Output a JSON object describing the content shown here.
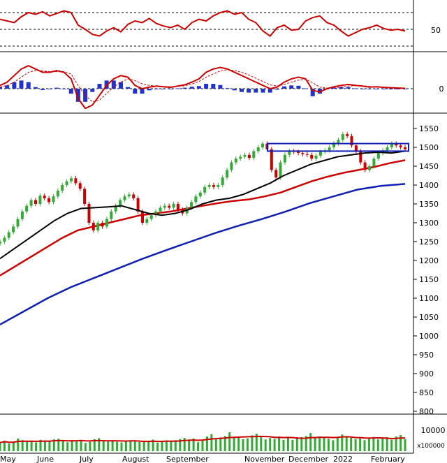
{
  "chart_data": [
    {
      "panel": "rsi",
      "type": "line",
      "y_ticks": [
        {
          "value": 50,
          "label": "50"
        }
      ],
      "ylim": [
        0,
        100
      ],
      "reference_levels": [
        70,
        50,
        30
      ],
      "series": [
        {
          "values": [
            62,
            60,
            58,
            65,
            70,
            68,
            71,
            66,
            69,
            72,
            70,
            55,
            50,
            44,
            42,
            48,
            52,
            47,
            56,
            60,
            58,
            63,
            57,
            54,
            52,
            55,
            50,
            58,
            62,
            60,
            66,
            70,
            72,
            68,
            70,
            62,
            58,
            48,
            42,
            52,
            55,
            49,
            50,
            60,
            64,
            66,
            58,
            55,
            48,
            42,
            46,
            50,
            52,
            55,
            51,
            49,
            50,
            48
          ]
        }
      ]
    },
    {
      "panel": "macd",
      "type": "line",
      "y_ticks": [
        {
          "value": 0,
          "label": "0"
        }
      ],
      "ylim": [
        -10,
        10
      ],
      "series": [
        {
          "values": [
            1,
            2,
            4,
            6,
            7,
            6,
            5,
            5,
            5.5,
            5,
            3,
            -3,
            -6,
            -5,
            -2,
            1,
            3,
            4,
            3.5,
            1,
            0,
            0.5,
            0.8,
            0.6,
            0.4,
            0.8,
            1.2,
            2,
            3,
            5,
            6,
            6.5,
            6,
            5,
            4,
            3,
            2,
            1,
            0,
            0.5,
            2,
            3,
            3.5,
            3,
            -0.5,
            -1,
            0,
            0.6,
            1,
            1.3,
            1,
            0.8,
            0.5,
            0.6,
            0.4,
            0.3,
            0.2,
            0.1
          ]
        },
        {
          "values": [
            0.5,
            1,
            2,
            3.5,
            5,
            5.5,
            5.4,
            5.2,
            5.2,
            5.2,
            4.5,
            1,
            -2,
            -4,
            -3.5,
            -1.5,
            0.5,
            2,
            3,
            2.5,
            1.5,
            1,
            0.8,
            0.7,
            0.6,
            0.7,
            0.9,
            1.4,
            2.2,
            3.5,
            4.5,
            5.4,
            5.8,
            5.5,
            5,
            4.2,
            3.2,
            2.2,
            1.2,
            0.8,
            1.3,
            2,
            2.6,
            2.9,
            1.8,
            0.5,
            0.2,
            0.3,
            0.5,
            0.8,
            0.9,
            0.9,
            0.7,
            0.6,
            0.5,
            0.4,
            0.3,
            0.2
          ]
        },
        {
          "type": "bar",
          "values": [
            0.5,
            1,
            2,
            2.5,
            2,
            0.5,
            -0.4,
            -0.2,
            0.3,
            -0.2,
            -1.5,
            -4,
            -4,
            -1,
            1.5,
            2.5,
            2.5,
            2,
            0.5,
            -1.5,
            -1.5,
            -0.5,
            0,
            -0.1,
            -0.2,
            0.1,
            0.3,
            0.6,
            0.8,
            1.5,
            1.5,
            1.1,
            0.2,
            -0.5,
            -1,
            -1.2,
            -1.2,
            -1.2,
            -1.2,
            -0.3,
            0.7,
            1,
            0.9,
            0.1,
            -2.3,
            -1.5,
            -0.2,
            0.3,
            0.5,
            0.5,
            0.1,
            -0.1,
            -0.2,
            0,
            -0.1,
            -0.1,
            -0.1,
            -0.1
          ]
        }
      ]
    },
    {
      "panel": "price",
      "type": "line",
      "y_ticks": [
        {
          "value": 1550,
          "label": "1550"
        },
        {
          "value": 1500,
          "label": "1500"
        },
        {
          "value": 1450,
          "label": "1450"
        },
        {
          "value": 1400,
          "label": "1400"
        },
        {
          "value": 1350,
          "label": "1350"
        },
        {
          "value": 1300,
          "label": "1300"
        },
        {
          "value": 1250,
          "label": "1250"
        },
        {
          "value": 1200,
          "label": "1200"
        },
        {
          "value": 1150,
          "label": "1150"
        },
        {
          "value": 1100,
          "label": "1100"
        },
        {
          "value": 1050,
          "label": "1050"
        },
        {
          "value": 1000,
          "label": "1000"
        },
        {
          "value": 950,
          "label": "950"
        },
        {
          "value": 900,
          "label": "900"
        },
        {
          "value": 850,
          "label": "850"
        },
        {
          "value": 800,
          "label": "800"
        }
      ],
      "ylim": [
        790,
        1570
      ],
      "price": [
        1250,
        1260,
        1275,
        1290,
        1310,
        1330,
        1345,
        1360,
        1350,
        1372,
        1365,
        1355,
        1370,
        1385,
        1400,
        1410,
        1418,
        1405,
        1390,
        1350,
        1300,
        1280,
        1300,
        1290,
        1310,
        1330,
        1345,
        1360,
        1370,
        1375,
        1365,
        1330,
        1300,
        1310,
        1320,
        1330,
        1340,
        1345,
        1340,
        1350,
        1335,
        1325,
        1340,
        1355,
        1370,
        1380,
        1395,
        1400,
        1395,
        1400,
        1420,
        1440,
        1460,
        1470,
        1475,
        1480,
        1472,
        1490,
        1500,
        1510,
        1495,
        1440,
        1420,
        1460,
        1480,
        1490,
        1488,
        1485,
        1482,
        1480,
        1470,
        1478,
        1488,
        1492,
        1500,
        1510,
        1520,
        1535,
        1530,
        1505,
        1490,
        1460,
        1440,
        1450,
        1470,
        1485,
        1492,
        1500,
        1510,
        1505,
        1500,
        1495
      ],
      "ma_black": [
        1205,
        1230,
        1255,
        1280,
        1305,
        1325,
        1338,
        1340,
        1342,
        1345,
        1335,
        1325,
        1320,
        1325,
        1335,
        1350,
        1360,
        1365,
        1375,
        1390,
        1405,
        1425,
        1440,
        1455,
        1465,
        1475,
        1480,
        1485,
        1487,
        1485,
        1490
      ],
      "ma_red": [
        1160,
        1185,
        1210,
        1235,
        1260,
        1280,
        1290,
        1300,
        1310,
        1320,
        1325,
        1330,
        1338,
        1345,
        1352,
        1358,
        1362,
        1370,
        1380,
        1395,
        1410,
        1422,
        1432,
        1440,
        1448,
        1458,
        1466
      ],
      "ma_blue": [
        1030,
        1065,
        1100,
        1130,
        1155,
        1180,
        1205,
        1228,
        1250,
        1272,
        1292,
        1310,
        1330,
        1352,
        1370,
        1388,
        1398,
        1403
      ],
      "resistance_zone": [
        1490,
        1510
      ]
    },
    {
      "panel": "volume",
      "type": "bar",
      "y_ticks": [
        {
          "value": 10000,
          "label": "10000"
        }
      ],
      "unit_label": "x100000",
      "values": [
        4200,
        5100,
        3800,
        4600,
        6200,
        5400,
        4800,
        5000,
        4300,
        5600,
        4900,
        4700,
        5800,
        6100,
        5300,
        4400,
        5200,
        4800,
        5500,
        4000,
        4600,
        5900,
        6400,
        5200,
        4700,
        5000,
        4600,
        4300,
        4900,
        5300,
        4800,
        4500,
        4700,
        5100,
        5700,
        4200,
        4900,
        5300,
        4700,
        5400,
        6000,
        6500,
        5800,
        6200,
        4400,
        5600,
        7200,
        8400,
        6100,
        6800,
        7500,
        9300,
        6600,
        7000,
        5900,
        6300,
        7800,
        8600,
        7100,
        5800,
        6500,
        6000,
        7200,
        5600,
        6700,
        5500,
        6200,
        6900,
        7500,
        8900,
        6400,
        7300,
        6800,
        6100,
        5400,
        6900,
        8200,
        7400,
        6600,
        5900,
        6300,
        5400,
        6100,
        7000,
        5800,
        6400,
        6900,
        5700,
        7200,
        7900,
        6000
      ]
    }
  ],
  "months": [
    "May",
    "June",
    "July",
    "August",
    "September",
    "November",
    "December",
    "2022",
    "February"
  ],
  "colors": {
    "up_candle": "#33aa33",
    "down_candle": "#cc0000",
    "volume": "#33aa33",
    "ma_black": "#000000",
    "ma_red": "#cc0000",
    "ma_blue": "#1020b0",
    "rsi": "#cc0000",
    "macd": "#cc0000",
    "histogram": "#2233cc",
    "zone": "#1020b0"
  }
}
